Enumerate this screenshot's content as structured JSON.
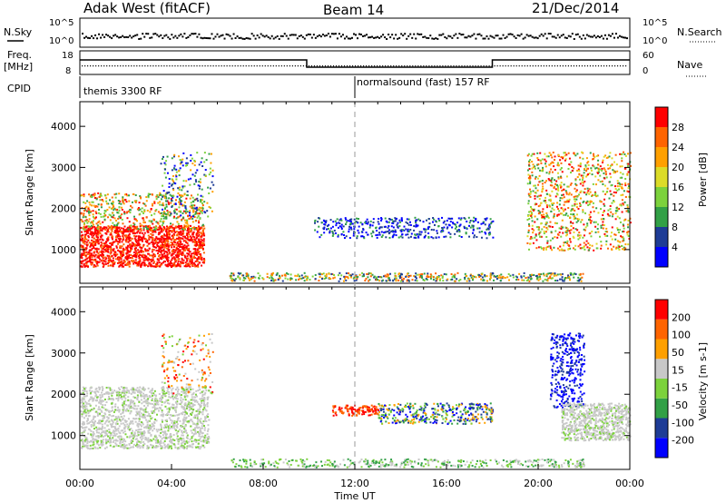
{
  "header": {
    "radar": "Adak West (fitACF)",
    "beam": "Beam 14",
    "date": "21/Dec/2014"
  },
  "top_panels": {
    "nsky_label": "N.Sky",
    "nsky_ticks": [
      "10^5",
      "10^0"
    ],
    "nsearch_label": "N.Search",
    "nsearch_ticks": [
      "10^5",
      "10^0"
    ],
    "freq_label_line1": "Freq.",
    "freq_label_line2": "[MHz]",
    "freq_ticks": [
      "18",
      "8"
    ],
    "nave_label": "Nave",
    "nave_ticks": [
      "60",
      "0"
    ],
    "cpid_label": "CPID",
    "cpid_segments": [
      "themis 3300 RF",
      "normalsound (fast) 157 RF"
    ]
  },
  "chart_data": [
    {
      "type": "heatmap",
      "name": "power",
      "ylabel": "Slant Range [km]",
      "yticks": [
        "4000",
        "3000",
        "2000",
        "1000"
      ],
      "ylim": [
        180,
        4600
      ],
      "colorbar_label": "Power [dB]",
      "colorbar_ticks": [
        "28",
        "24",
        "20",
        "16",
        "12",
        "8",
        "4"
      ],
      "colors": [
        "#0000ff",
        "#1e3c96",
        "#32a046",
        "#7cd23c",
        "#dcdc28",
        "#ffa000",
        "#ff6400",
        "#ff0000"
      ],
      "gap_hours": [
        6.4,
        9.9
      ],
      "grid": false
    },
    {
      "type": "heatmap",
      "name": "velocity",
      "ylabel": "Slant Range [km]",
      "yticks": [
        "4000",
        "3000",
        "2000",
        "1000"
      ],
      "ylim": [
        180,
        4600
      ],
      "colorbar_label": "Velocity [m s-1]",
      "colorbar_ticks": [
        "200",
        "100",
        "50",
        "15",
        "-15",
        "-50",
        "-100",
        "-200"
      ],
      "colors": [
        "#0000ff",
        "#1e3c96",
        "#32a046",
        "#7cd23c",
        "#c8c8c8",
        "#ffa000",
        "#ff6400",
        "#ff0000"
      ],
      "grid": false
    }
  ],
  "x_axis": {
    "label": "Time UT",
    "ticks": [
      "00:00",
      "04:00",
      "08:00",
      "12:00",
      "16:00",
      "20:00",
      "00:00"
    ],
    "xlim_hours": [
      0,
      24
    ]
  }
}
